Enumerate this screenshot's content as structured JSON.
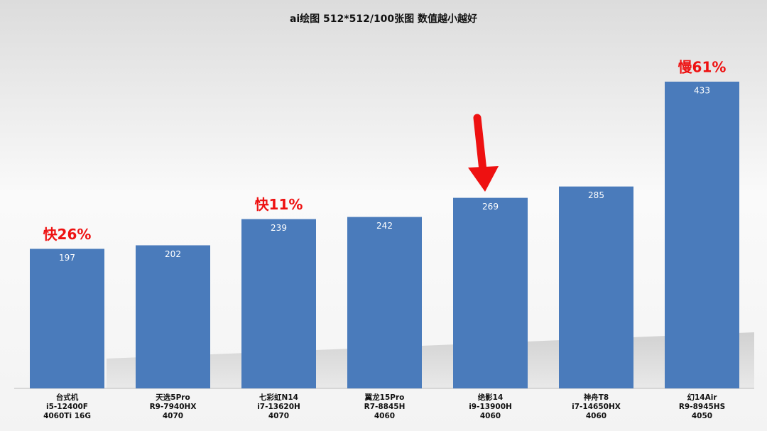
{
  "chart_data": {
    "type": "bar",
    "title": "ai绘图 512*512/100张图 数值越小越好",
    "categories": [
      [
        "台式机",
        "i5-12400F",
        "4060Ti 16G"
      ],
      [
        "天选5Pro",
        "R9-7940HX",
        "4070"
      ],
      [
        "七彩虹N14",
        "i7-13620H",
        "4070"
      ],
      [
        "翼龙15Pro",
        "R7-8845H",
        "4060"
      ],
      [
        "绝影14",
        "i9-13900H",
        "4060"
      ],
      [
        "神舟T8",
        "i7-14650HX",
        "4060"
      ],
      [
        "幻14Air",
        "R9-8945HS",
        "4050"
      ]
    ],
    "values": [
      197,
      202,
      239,
      242,
      269,
      285,
      433
    ],
    "annotations": [
      "快26%",
      null,
      "快11%",
      null,
      null,
      null,
      "慢61%"
    ],
    "color": "#4a7bbb"
  }
}
